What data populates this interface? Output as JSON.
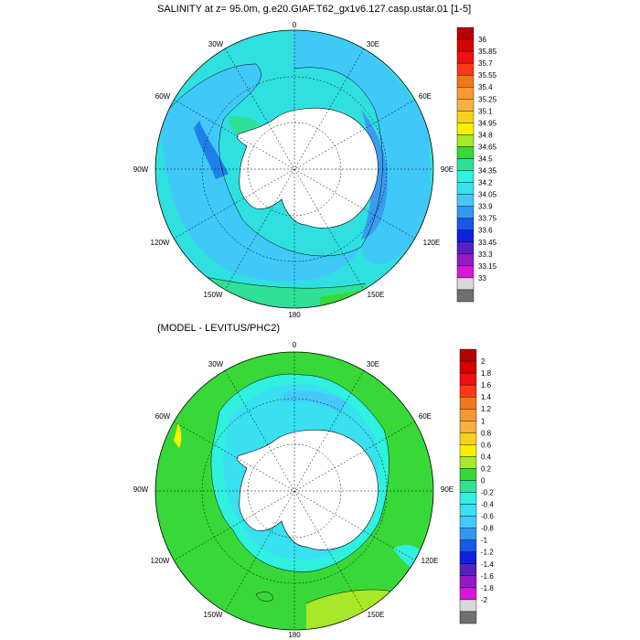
{
  "panels": [
    {
      "title": "SALINITY at z=  95.0m, g.e20.GIAF.T62_gx1v6.127.casp.ustar.01 [1-5]",
      "labels": {
        "top": "0",
        "tr": "30E",
        "tl": "30W",
        "ur": "60E",
        "ul": "60W",
        "right": "90E",
        "left": "90W",
        "lr": "120E",
        "ll": "120W",
        "br": "150E",
        "bl": "150W",
        "bottom": "180"
      },
      "colorbar": {
        "labels": [
          "36",
          "35.85",
          "35.7",
          "35.55",
          "35.4",
          "35.25",
          "35.1",
          "34.95",
          "34.8",
          "34.65",
          "34.5",
          "34.35",
          "34.2",
          "34.05",
          "33.9",
          "33.75",
          "33.6",
          "33.45",
          "33.3",
          "33.15",
          "33"
        ],
        "colors": [
          "#b40000",
          "#d80000",
          "#f01010",
          "#ff3818",
          "#f07818",
          "#f89830",
          "#f8b040",
          "#f8d020",
          "#f8f000",
          "#a8e828",
          "#38d838",
          "#30e098",
          "#30f0e0",
          "#38e0f0",
          "#48c8f8",
          "#3098f0",
          "#1858e8",
          "#1020e0",
          "#5820c0",
          "#9818c8",
          "#d818d8",
          "#d8d8d8",
          "#707070"
        ]
      }
    },
    {
      "title": "(MODEL - LEVITUS/PHC2)",
      "labels": {
        "top": "0",
        "tr": "30E",
        "tl": "30W",
        "ur": "60E",
        "ul": "60W",
        "right": "90E",
        "left": "90W",
        "lr": "120E",
        "ll": "120W",
        "br": "150E",
        "bl": "150W",
        "bottom": "180"
      },
      "colorbar": {
        "labels": [
          "2",
          "1.8",
          "1.6",
          "1.4",
          "1.2",
          "1",
          "0.8",
          "0.6",
          "0.4",
          "0.2",
          "0",
          "-0.2",
          "-0.4",
          "-0.6",
          "-0.8",
          "-1",
          "-1.2",
          "-1.4",
          "-1.6",
          "-1.8",
          "-2"
        ],
        "colors": [
          "#b40000",
          "#d80000",
          "#f01010",
          "#ff3818",
          "#f07818",
          "#f89830",
          "#f8b040",
          "#f8d020",
          "#f8f000",
          "#a8e828",
          "#38d838",
          "#30e098",
          "#30f0e0",
          "#38e0f0",
          "#48c8f8",
          "#3098f0",
          "#1858e8",
          "#1020e0",
          "#5820c0",
          "#9818c8",
          "#d818d8",
          "#d8d8d8",
          "#707070"
        ]
      }
    }
  ]
}
